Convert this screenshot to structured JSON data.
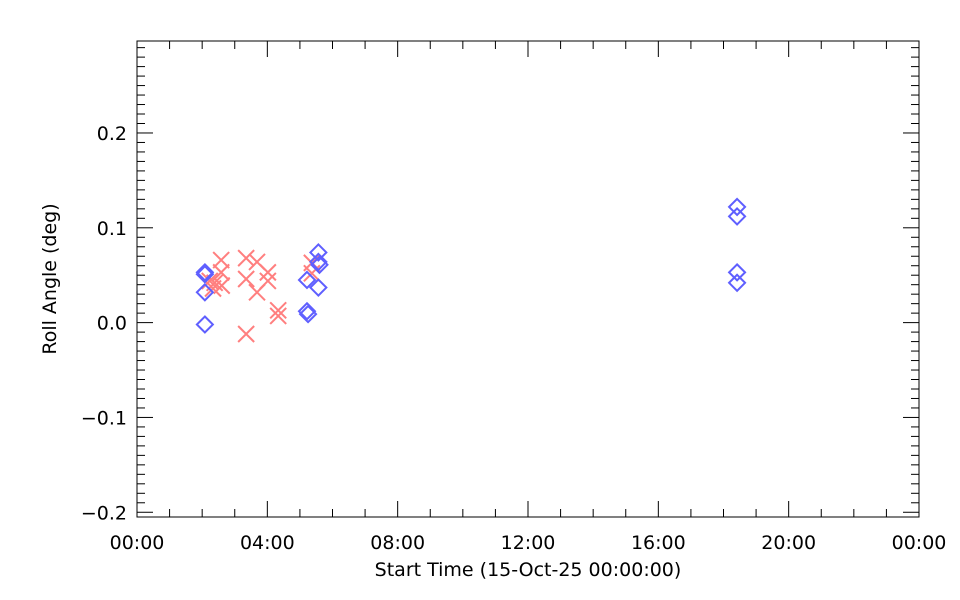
{
  "chart_data": {
    "type": "scatter",
    "title": "",
    "xlabel": "Start Time (15-Oct-25 00:00:00)",
    "ylabel": "Roll Angle (deg)",
    "xlim": [
      "00:00",
      "24:00"
    ],
    "ylim": [
      -0.205,
      0.297
    ],
    "xticks": [
      "00:00",
      "04:00",
      "08:00",
      "12:00",
      "16:00",
      "20:00",
      "00:00"
    ],
    "yticks": [
      "-0.2",
      "-0.1",
      "0.0",
      "0.1",
      "0.2"
    ],
    "grid": false,
    "series": [
      {
        "marker": "x",
        "color": "#ff7f7f",
        "points": [
          [
            "02:35",
            0.066
          ],
          [
            "03:21",
            0.068
          ],
          [
            "03:41",
            0.064
          ],
          [
            "04:01",
            0.053
          ],
          [
            "02:35",
            0.053
          ],
          [
            "02:23",
            0.042
          ],
          [
            "02:14",
            0.044
          ],
          [
            "02:36",
            0.039
          ],
          [
            "03:21",
            0.046
          ],
          [
            "03:41",
            0.032
          ],
          [
            "04:01",
            0.044
          ],
          [
            "04:20",
            0.013
          ],
          [
            "04:20",
            0.007
          ],
          [
            "03:21",
            -0.012
          ],
          [
            "05:22",
            0.063
          ],
          [
            "05:22",
            0.052
          ],
          [
            "02:20",
            0.036
          ]
        ]
      },
      {
        "marker": "diamond",
        "color": "#5f5fff",
        "points": [
          [
            "02:05",
            0.053
          ],
          [
            "02:05",
            0.051
          ],
          [
            "02:05",
            0.032
          ],
          [
            "02:05",
            -0.002
          ],
          [
            "05:13",
            0.045
          ],
          [
            "05:13",
            0.012
          ],
          [
            "05:15",
            0.009
          ],
          [
            "05:34",
            0.074
          ],
          [
            "05:34",
            0.064
          ],
          [
            "05:36",
            0.061
          ],
          [
            "05:34",
            0.037
          ],
          [
            "18:25",
            0.122
          ],
          [
            "18:25",
            0.112
          ],
          [
            "18:25",
            0.053
          ],
          [
            "18:25",
            0.042
          ]
        ]
      }
    ]
  }
}
